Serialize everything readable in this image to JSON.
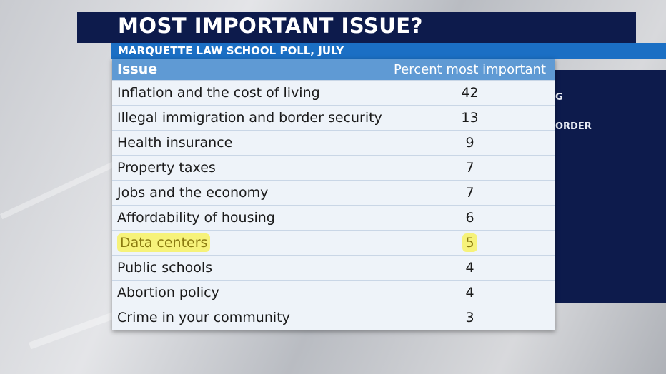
{
  "header": {
    "title": "MOST IMPORTANT ISSUE?",
    "subtitle": "MARQUETTE LAW SCHOOL POLL, JULY"
  },
  "background": {
    "fragments": [
      "G",
      "ORDER"
    ]
  },
  "table": {
    "columns": [
      "Issue",
      "Percent most important"
    ],
    "rows": [
      [
        "Inflation and the cost of living",
        42
      ],
      [
        "Illegal immigration and border security",
        13
      ],
      [
        "Health insurance",
        9
      ],
      [
        "Property taxes",
        7
      ],
      [
        "Jobs and the economy",
        7
      ],
      [
        "Affordability of housing",
        6
      ],
      [
        "Data centers",
        5
      ],
      [
        "Public schools",
        4
      ],
      [
        "Abortion policy",
        4
      ],
      [
        "Crime in your community",
        3
      ]
    ],
    "highlight_row": 6
  }
}
